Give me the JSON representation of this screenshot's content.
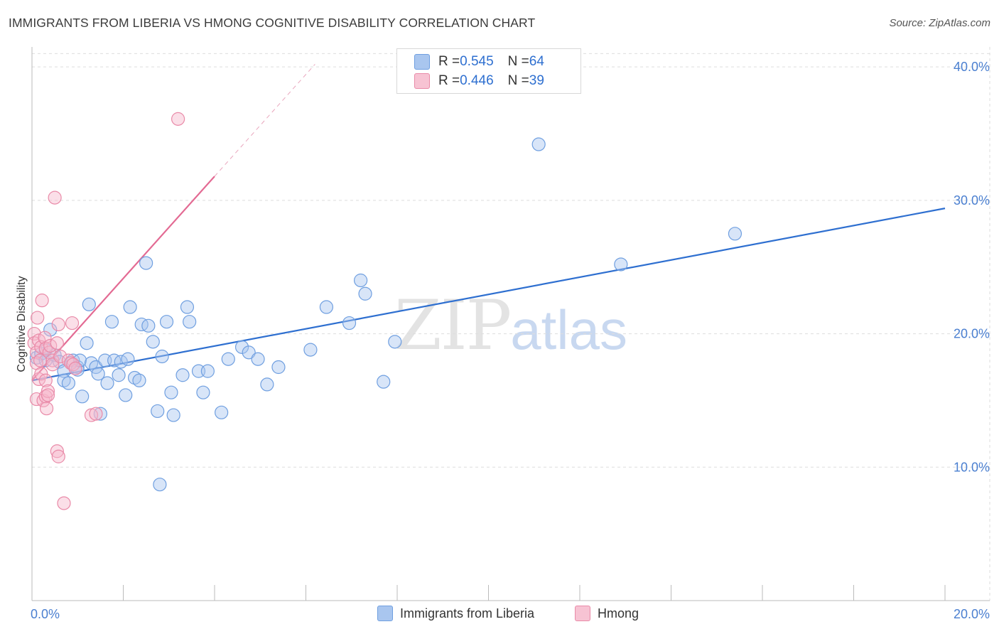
{
  "header": {
    "title": "IMMIGRANTS FROM LIBERIA VS HMONG COGNITIVE DISABILITY CORRELATION CHART",
    "source": "Source: ZipAtlas.com"
  },
  "watermark": {
    "zip": "ZIP",
    "atlas": "atlas"
  },
  "colors": {
    "blue_fill": "#a9c6ef",
    "blue_stroke": "#6f9fe0",
    "blue_line": "#2e6fd0",
    "pink_fill": "#f7b8cc",
    "pink_stroke": "#e98aa8",
    "pink_line": "#e36a93",
    "grid": "#dddddd",
    "tick_text": "#4a7fd0"
  },
  "legend_top": {
    "rows": [
      {
        "r_label": "R = ",
        "r_value": "0.545",
        "n_label": "N = ",
        "n_value": "64",
        "series": "blue"
      },
      {
        "r_label": "R = ",
        "r_value": "0.446",
        "n_label": "N = ",
        "n_value": "39",
        "series": "pink"
      }
    ]
  },
  "chart_data": {
    "type": "scatter",
    "title": "IMMIGRANTS FROM LIBERIA VS HMONG COGNITIVE DISABILITY CORRELATION CHART",
    "xlabel": "",
    "ylabel": "Cognitive Disability",
    "xlim": [
      0,
      20
    ],
    "ylim": [
      0,
      41.5
    ],
    "x_ticks": [
      {
        "value": 0,
        "label": "0.0%"
      },
      {
        "value": 20,
        "label": "20.0%"
      }
    ],
    "y_ticks": [
      {
        "value": 10,
        "label": "10.0%"
      },
      {
        "value": 20,
        "label": "20.0%"
      },
      {
        "value": 30,
        "label": "30.0%"
      },
      {
        "value": 40,
        "label": "40.0%"
      }
    ],
    "x_minor_ticks": [
      0,
      2,
      4,
      6,
      8,
      10,
      12,
      14,
      16,
      18,
      20
    ],
    "grid": true,
    "legend": "bottom-center",
    "series": [
      {
        "name": "Immigrants from Liberia",
        "color": "blue",
        "R": 0.545,
        "N": 64,
        "trend": {
          "x": [
            0,
            20
          ],
          "y": [
            16.5,
            29.4
          ],
          "dashed_extension": false
        },
        "points": [
          [
            0.1,
            18.2
          ],
          [
            0.2,
            18.5
          ],
          [
            0.3,
            18.8
          ],
          [
            0.3,
            18.0
          ],
          [
            0.4,
            20.3
          ],
          [
            0.5,
            18.4
          ],
          [
            0.6,
            17.9
          ],
          [
            0.7,
            17.2
          ],
          [
            0.7,
            16.5
          ],
          [
            0.8,
            16.3
          ],
          [
            0.9,
            18.0
          ],
          [
            1.0,
            17.5
          ],
          [
            1.0,
            17.3
          ],
          [
            1.05,
            18.0
          ],
          [
            1.1,
            15.3
          ],
          [
            1.2,
            19.3
          ],
          [
            1.25,
            22.2
          ],
          [
            1.3,
            17.8
          ],
          [
            1.4,
            17.5
          ],
          [
            1.45,
            17.0
          ],
          [
            1.5,
            14.0
          ],
          [
            1.6,
            18.0
          ],
          [
            1.65,
            16.3
          ],
          [
            1.75,
            20.9
          ],
          [
            1.8,
            18.0
          ],
          [
            1.9,
            16.9
          ],
          [
            1.95,
            17.9
          ],
          [
            2.05,
            15.4
          ],
          [
            2.1,
            18.1
          ],
          [
            2.15,
            22.0
          ],
          [
            2.25,
            16.7
          ],
          [
            2.35,
            16.5
          ],
          [
            2.4,
            20.7
          ],
          [
            2.5,
            25.3
          ],
          [
            2.55,
            20.6
          ],
          [
            2.65,
            19.4
          ],
          [
            2.75,
            14.2
          ],
          [
            2.8,
            8.7
          ],
          [
            2.85,
            18.3
          ],
          [
            2.95,
            20.9
          ],
          [
            3.05,
            15.6
          ],
          [
            3.1,
            13.9
          ],
          [
            3.3,
            16.9
          ],
          [
            3.4,
            22.0
          ],
          [
            3.45,
            20.9
          ],
          [
            3.65,
            17.2
          ],
          [
            3.75,
            15.6
          ],
          [
            3.85,
            17.2
          ],
          [
            4.15,
            14.1
          ],
          [
            4.3,
            18.1
          ],
          [
            4.6,
            19.0
          ],
          [
            4.75,
            18.6
          ],
          [
            4.95,
            18.1
          ],
          [
            5.15,
            16.2
          ],
          [
            5.4,
            17.5
          ],
          [
            6.1,
            18.8
          ],
          [
            6.45,
            22.0
          ],
          [
            6.95,
            20.8
          ],
          [
            7.2,
            24.0
          ],
          [
            7.3,
            23.0
          ],
          [
            7.7,
            16.4
          ],
          [
            7.95,
            19.4
          ],
          [
            11.1,
            34.2
          ],
          [
            12.9,
            25.2
          ],
          [
            15.4,
            27.5
          ]
        ]
      },
      {
        "name": "Hmong",
        "color": "pink",
        "R": 0.446,
        "N": 39,
        "trend": {
          "x": [
            0,
            4
          ],
          "y": [
            16.5,
            31.8
          ],
          "dashed_extension": {
            "x": [
              4,
              6.2
            ],
            "y": [
              31.8,
              40.2
            ]
          }
        },
        "points": [
          [
            0.05,
            20.0
          ],
          [
            0.05,
            19.3
          ],
          [
            0.1,
            18.6
          ],
          [
            0.1,
            17.8
          ],
          [
            0.1,
            15.1
          ],
          [
            0.12,
            21.2
          ],
          [
            0.15,
            19.5
          ],
          [
            0.15,
            16.6
          ],
          [
            0.18,
            18.0
          ],
          [
            0.2,
            19.0
          ],
          [
            0.2,
            17.0
          ],
          [
            0.22,
            22.5
          ],
          [
            0.25,
            15.0
          ],
          [
            0.28,
            19.7
          ],
          [
            0.3,
            18.9
          ],
          [
            0.3,
            16.5
          ],
          [
            0.3,
            15.3
          ],
          [
            0.32,
            14.4
          ],
          [
            0.35,
            15.7
          ],
          [
            0.35,
            15.4
          ],
          [
            0.38,
            18.6
          ],
          [
            0.4,
            19.1
          ],
          [
            0.45,
            18.0
          ],
          [
            0.45,
            17.7
          ],
          [
            0.5,
            30.2
          ],
          [
            0.55,
            19.3
          ],
          [
            0.58,
            20.7
          ],
          [
            0.55,
            11.2
          ],
          [
            0.58,
            10.8
          ],
          [
            0.62,
            18.3
          ],
          [
            0.7,
            7.3
          ],
          [
            0.8,
            18.0
          ],
          [
            0.85,
            17.8
          ],
          [
            0.88,
            20.8
          ],
          [
            0.9,
            17.7
          ],
          [
            0.95,
            17.4
          ],
          [
            1.3,
            13.9
          ],
          [
            1.4,
            14.0
          ],
          [
            3.2,
            36.1
          ]
        ]
      }
    ]
  },
  "legend_bottom": {
    "items": [
      {
        "label": "Immigrants from Liberia",
        "series": "blue"
      },
      {
        "label": "Hmong",
        "series": "pink"
      }
    ]
  }
}
